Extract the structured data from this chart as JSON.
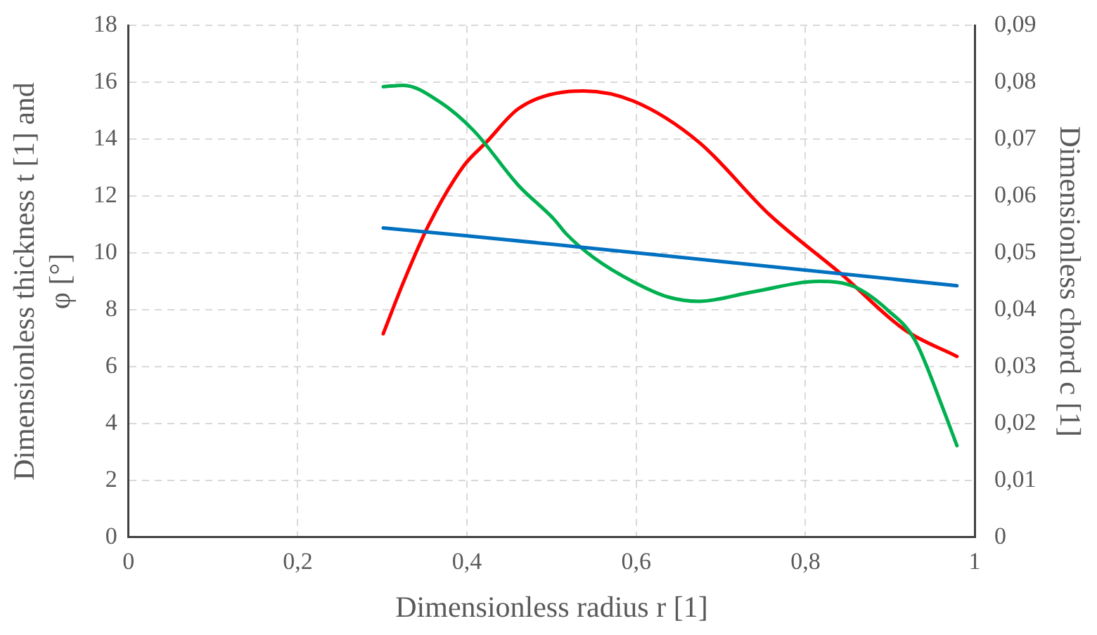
{
  "chart_data": {
    "type": "line",
    "xlabel": "Dimensionless radius r [1]",
    "ylabel": "Dimensionless thickness t [1] and φ [°]",
    "y2label": "Dimensionless chord c [1]",
    "xlim": [
      0,
      1
    ],
    "xticks": [
      0,
      {
        "value": 0.2,
        "label": "0,2"
      },
      {
        "value": 0.4,
        "label": "0,4"
      },
      {
        "value": 0.6,
        "label": "0,6"
      },
      {
        "value": 0.8,
        "label": "0,8"
      },
      1
    ],
    "ylim": [
      0,
      18
    ],
    "yticks": [
      0,
      2,
      4,
      6,
      8,
      10,
      12,
      14,
      16,
      18
    ],
    "y2lim": [
      0,
      0.09
    ],
    "y2ticks": [
      0,
      {
        "value": 0.01,
        "label": "0,01"
      },
      {
        "value": 0.02,
        "label": "0,02"
      },
      {
        "value": 0.03,
        "label": "0,03"
      },
      {
        "value": 0.04,
        "label": "0,04"
      },
      {
        "value": 0.05,
        "label": "0,05"
      },
      {
        "value": 0.06,
        "label": "0,06"
      },
      {
        "value": 0.07,
        "label": "0,07"
      },
      {
        "value": 0.08,
        "label": "0,08"
      },
      {
        "value": 0.09,
        "label": "0,09"
      }
    ],
    "grid": true,
    "legend": false,
    "marker": "none",
    "line_style": "solid",
    "series": [
      {
        "color": "#0070c0",
        "x": [
          0.301,
          0.4,
          0.503,
          0.7,
          0.979
        ],
        "values": [
          10.88,
          10.6,
          10.3,
          9.7,
          8.85
        ]
      },
      {
        "color": "#00b050",
        "x": [
          0.301,
          0.325,
          0.367,
          0.408,
          0.461,
          0.503,
          0.517,
          0.55,
          0.597,
          0.639,
          0.674,
          0.739,
          0.816,
          0.858,
          0.898,
          0.929,
          0.964,
          0.979
        ],
        "values": [
          15.85,
          15.9,
          15.33,
          14.3,
          12.37,
          11.18,
          10.68,
          9.83,
          8.98,
          8.44,
          8.3,
          8.64,
          9.0,
          8.81,
          7.97,
          6.95,
          4.41,
          3.22
        ]
      },
      {
        "color": "#ff0000",
        "axis": "y2",
        "x": [
          0.301,
          0.325,
          0.355,
          0.396,
          0.423,
          0.461,
          0.52,
          0.538,
          0.597,
          0.674,
          0.757,
          0.843,
          0.917,
          0.979
        ],
        "values": [
          0.0358,
          0.0449,
          0.055,
          0.0653,
          0.0695,
          0.0754,
          0.0784,
          0.0785,
          0.0767,
          0.0695,
          0.0568,
          0.0462,
          0.0365,
          0.0318
        ]
      }
    ]
  }
}
